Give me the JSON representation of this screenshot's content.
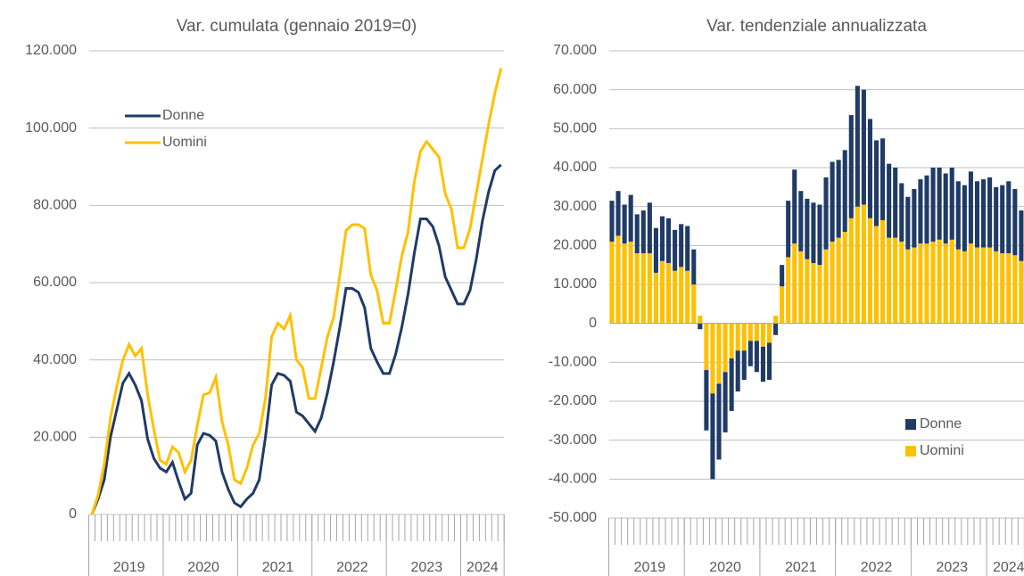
{
  "chart_data": [
    {
      "type": "line",
      "title": "Var. cumulata (gennaio 2019=0)",
      "categories": [
        null,
        null,
        null,
        null,
        null,
        null,
        "2019",
        null,
        null,
        null,
        null,
        null,
        null,
        null,
        null,
        null,
        null,
        null,
        "2020",
        null,
        null,
        null,
        null,
        null,
        null,
        null,
        null,
        null,
        null,
        null,
        "2021",
        null,
        null,
        null,
        null,
        null,
        null,
        null,
        null,
        null,
        null,
        null,
        "2022",
        null,
        null,
        null,
        null,
        null,
        null,
        null,
        null,
        null,
        null,
        null,
        "2023",
        null,
        null,
        null,
        null,
        null,
        null,
        null,
        null,
        "2024",
        null,
        null,
        null
      ],
      "series": [
        {
          "name": "Donne",
          "color": "#1f3b66",
          "values": [
            0,
            4000,
            9000,
            20000,
            27000,
            34000,
            36500,
            33500,
            29500,
            19500,
            14500,
            12000,
            11000,
            13500,
            8500,
            4000,
            5500,
            18000,
            21000,
            20500,
            19000,
            11000,
            6500,
            3000,
            2000,
            4000,
            5500,
            9000,
            20000,
            33500,
            36500,
            36000,
            34500,
            26500,
            25500,
            23500,
            21500,
            25000,
            31500,
            39500,
            48500,
            58500,
            58500,
            57500,
            53500,
            43000,
            39500,
            36500,
            36500,
            41500,
            48500,
            57000,
            67500,
            76500,
            76500,
            74500,
            69500,
            61500,
            58000,
            54500,
            54500,
            58000,
            66000,
            76000,
            83500,
            89000,
            90500
          ]
        },
        {
          "name": "Uomini",
          "color": "#ffc000",
          "values": [
            0,
            5000,
            13000,
            25000,
            33000,
            40000,
            44000,
            41000,
            43000,
            31000,
            22000,
            14000,
            13000,
            17500,
            16000,
            11000,
            14000,
            23000,
            31000,
            31500,
            35500,
            24000,
            18000,
            9000,
            8000,
            12000,
            18000,
            21000,
            30000,
            46000,
            49500,
            48000,
            51500,
            40000,
            38000,
            30000,
            30000,
            38000,
            46000,
            51000,
            62000,
            73500,
            75000,
            75000,
            74000,
            62000,
            58000,
            49500,
            49500,
            58000,
            67000,
            73000,
            86000,
            94000,
            96500,
            94500,
            92500,
            83000,
            79000,
            69000,
            69000,
            74000,
            83000,
            92000,
            101000,
            109000,
            115500
          ]
        }
      ],
      "ylim": [
        0,
        120000
      ],
      "yticks": [
        0,
        {
          "value": 20000,
          "label": "20.000"
        },
        {
          "value": 40000,
          "label": "40.000"
        },
        {
          "value": 60000,
          "label": "60.000"
        },
        {
          "value": 80000,
          "label": "80.000"
        },
        {
          "value": 100000,
          "label": "100.000"
        },
        {
          "value": 120000,
          "label": "120.000"
        }
      ],
      "grid": true,
      "legend": "upper left"
    },
    {
      "type": "bar",
      "stacked": true,
      "title": "Var. tendenziale annualizzata",
      "categories": [
        null,
        null,
        null,
        null,
        null,
        null,
        "2019",
        null,
        null,
        null,
        null,
        null,
        null,
        null,
        null,
        null,
        null,
        null,
        "2020",
        null,
        null,
        null,
        null,
        null,
        null,
        null,
        null,
        null,
        null,
        null,
        "2021",
        null,
        null,
        null,
        null,
        null,
        null,
        null,
        null,
        null,
        null,
        null,
        "2022",
        null,
        null,
        null,
        null,
        null,
        null,
        null,
        null,
        null,
        null,
        null,
        "2023",
        null,
        null,
        null,
        null,
        null,
        null,
        null,
        null,
        "2024",
        null,
        null
      ],
      "series": [
        {
          "name": "Donne",
          "color": "#1f3b66",
          "values": [
            10500,
            11500,
            10000,
            12000,
            10000,
            11000,
            13000,
            11500,
            11500,
            11500,
            10500,
            11000,
            11500,
            9000,
            -1500,
            -15500,
            -22000,
            -19500,
            -15500,
            -13500,
            -10500,
            -7500,
            -6500,
            -8000,
            -9000,
            -9500,
            -3000,
            5500,
            14500,
            19000,
            15500,
            15500,
            15500,
            15500,
            18500,
            20500,
            20000,
            21000,
            26500,
            31000,
            29500,
            25500,
            22000,
            21000,
            19000,
            18000,
            15000,
            13500,
            15000,
            16500,
            17500,
            19000,
            18500,
            18000,
            18500,
            17500,
            17000,
            18500,
            17000,
            17500,
            18000,
            16500,
            17500,
            18500,
            17000,
            13000
          ]
        },
        {
          "name": "Uomini",
          "color": "#ffc000",
          "values": [
            21000,
            22500,
            20500,
            21000,
            18000,
            18000,
            18000,
            13000,
            16000,
            15500,
            13500,
            14500,
            13500,
            10000,
            2000,
            -12000,
            -18000,
            -15500,
            -12500,
            -9000,
            -7000,
            -7000,
            -4500,
            -4500,
            -6000,
            -5000,
            2000,
            9500,
            17000,
            20500,
            18500,
            16500,
            15500,
            15000,
            19000,
            21000,
            22000,
            23500,
            27000,
            30000,
            30500,
            27000,
            25000,
            26500,
            22000,
            22000,
            21000,
            19000,
            19500,
            20500,
            20500,
            21000,
            21500,
            20500,
            21500,
            19000,
            18500,
            20500,
            19500,
            19500,
            19500,
            18500,
            18000,
            18000,
            17500,
            16000
          ]
        }
      ],
      "ylim": [
        -50000,
        70000
      ],
      "yticks": [
        {
          "value": -50000,
          "label": "-50.000"
        },
        {
          "value": -40000,
          "label": "-40.000"
        },
        {
          "value": -30000,
          "label": "-30.000"
        },
        {
          "value": -20000,
          "label": "-20.000"
        },
        {
          "value": -10000,
          "label": "-10.000"
        },
        0,
        {
          "value": 10000,
          "label": "10.000"
        },
        {
          "value": 20000,
          "label": "20.000"
        },
        {
          "value": 30000,
          "label": "30.000"
        },
        {
          "value": 40000,
          "label": "40.000"
        },
        {
          "value": 50000,
          "label": "50.000"
        },
        {
          "value": 60000,
          "label": "60.000"
        },
        {
          "value": 70000,
          "label": "70.000"
        }
      ],
      "grid": true,
      "legend": "lower right"
    }
  ]
}
